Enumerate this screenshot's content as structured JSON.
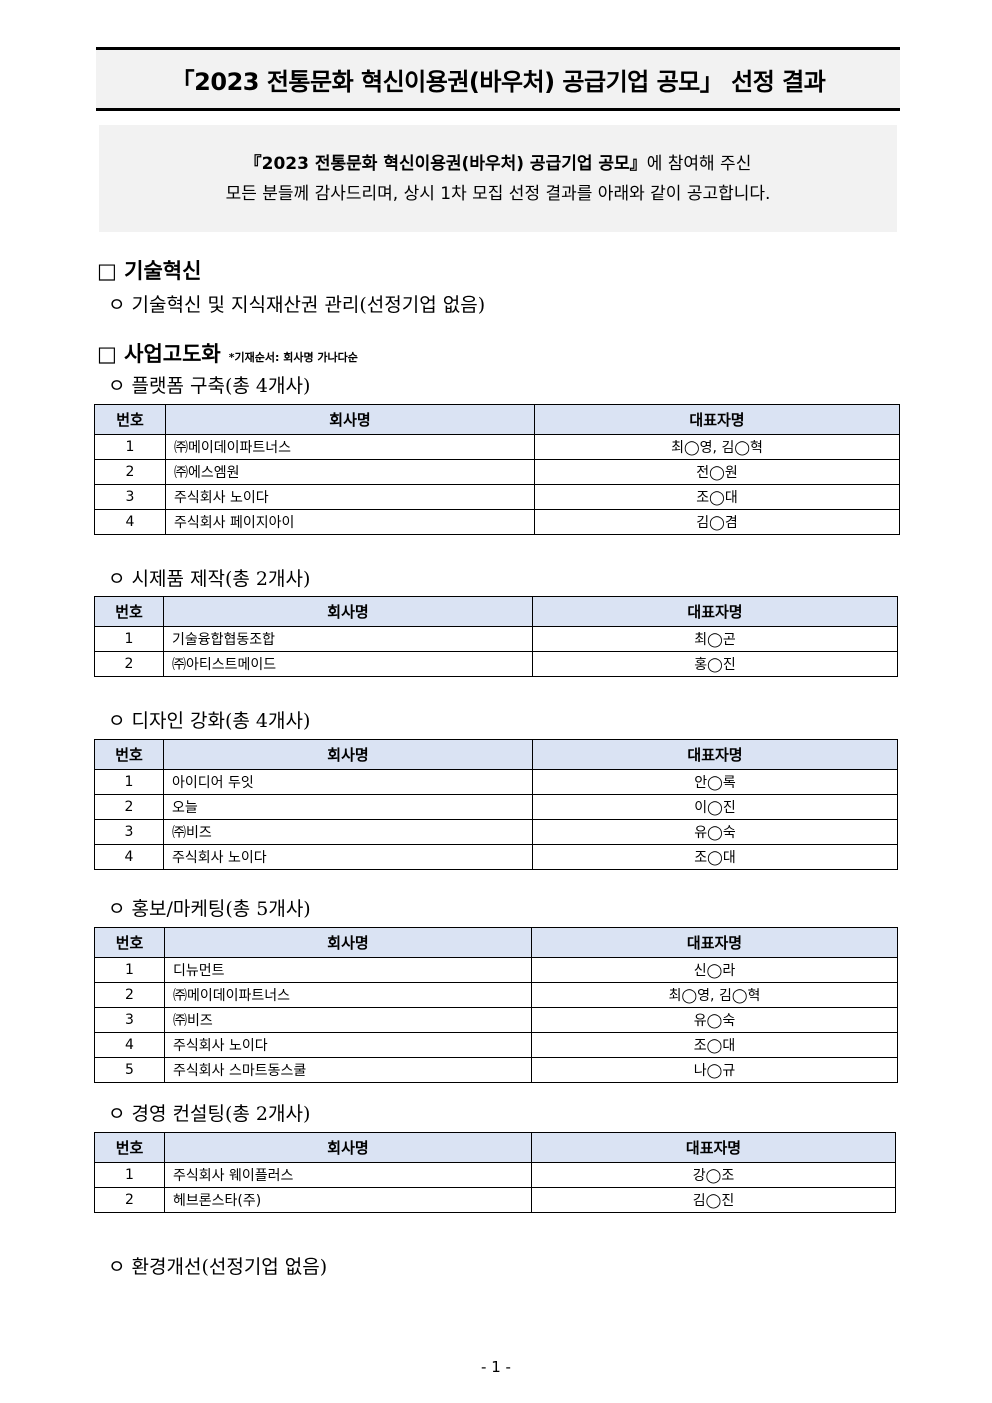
{
  "title": "「2023 전통문화 혁신이용권(바우처) 공급기업 공모」  선정 결과",
  "intro": {
    "line1_bold": "『2023 전통문화 혁신이용권(바우처) 공급기업 공모』",
    "line1_rest": "에 참여해 주신",
    "line2": "모든 분들께 감사드리며, 상시 1차 모집 선정 결과를 아래와 같이 공고합니다."
  },
  "sections": [
    {
      "heading": "□ 기술혁신"
    },
    {
      "heading": "□ 사업고도화",
      "note": "*기재순서: 회사명 가나다순"
    }
  ],
  "subsections": {
    "tech": "ㅇ 기술혁신 및 지식재산권 관리(선정기업 없음)",
    "env": "ㅇ 환경개선(선정기업 없음)"
  },
  "table_headers": [
    "번호",
    "회사명",
    "대표자명"
  ],
  "tables": [
    {
      "title": "ㅇ 플랫폼 구축(총 4개사)",
      "rows": [
        [
          "1",
          "㈜메이데이파트너스",
          "최◯영, 김◯혁"
        ],
        [
          "2",
          "㈜에스엠원",
          "전◯원"
        ],
        [
          "3",
          "주식회사 노이다",
          "조◯대"
        ],
        [
          "4",
          "주식회사 페이지아이",
          "김◯겸"
        ]
      ]
    },
    {
      "title": "ㅇ 시제품 제작(총 2개사)",
      "rows": [
        [
          "1",
          "기술융합협동조합",
          "최◯곤"
        ],
        [
          "2",
          "㈜아티스트메이드",
          "홍◯진"
        ]
      ]
    },
    {
      "title": "ㅇ 디자인 강화(총 4개사)",
      "rows": [
        [
          "1",
          "아이디어 두잇",
          "안◯록"
        ],
        [
          "2",
          "오늘",
          "이◯진"
        ],
        [
          "3",
          "㈜비즈",
          "유◯숙"
        ],
        [
          "4",
          "주식회사 노이다",
          "조◯대"
        ]
      ]
    },
    {
      "title": "ㅇ 홍보/마케팅(총 5개사)",
      "rows": [
        [
          "1",
          "디뉴먼트",
          "신◯라"
        ],
        [
          "2",
          "㈜메이데이파트너스",
          "최◯영, 김◯혁"
        ],
        [
          "3",
          "㈜비즈",
          "유◯숙"
        ],
        [
          "4",
          "주식회사 노이다",
          "조◯대"
        ],
        [
          "5",
          "주식회사 스마트동스쿨",
          "나◯규"
        ]
      ]
    },
    {
      "title": "ㅇ 경영 컨설팅(총 2개사)",
      "rows": [
        [
          "1",
          "주식회사 웨이플러스",
          "강◯조"
        ],
        [
          "2",
          "헤브론스타(주)",
          "김◯진"
        ]
      ]
    }
  ],
  "page_number": "- 1 -",
  "colors": {
    "header_bg": "#dae3f3",
    "box_bg": "#f2f2f2"
  }
}
